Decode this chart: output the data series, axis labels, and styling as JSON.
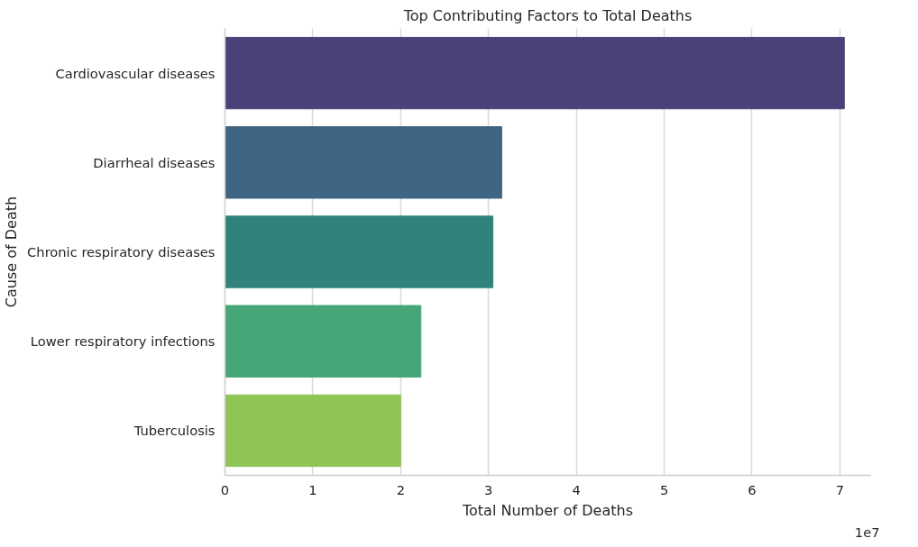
{
  "chart_data": {
    "type": "bar",
    "orientation": "horizontal",
    "title": "Top Contributing Factors to Total Deaths",
    "xlabel": "Total Number of Deaths",
    "ylabel": "Cause of Death",
    "categories": [
      "Cardiovascular diseases",
      "Diarrheal diseases",
      "Chronic respiratory diseases",
      "Lower respiratory infections",
      "Tuberculosis"
    ],
    "values": [
      7.05,
      3.15,
      3.05,
      2.23,
      2.0
    ],
    "colors": [
      "#4a4178",
      "#3e6583",
      "#2f837c",
      "#47a677",
      "#8fc457"
    ],
    "xlim": [
      0,
      7.35
    ],
    "xticks": [
      0,
      1,
      2,
      3,
      4,
      5,
      6,
      7
    ],
    "annotations": [
      "1e7"
    ],
    "grid": "x"
  }
}
